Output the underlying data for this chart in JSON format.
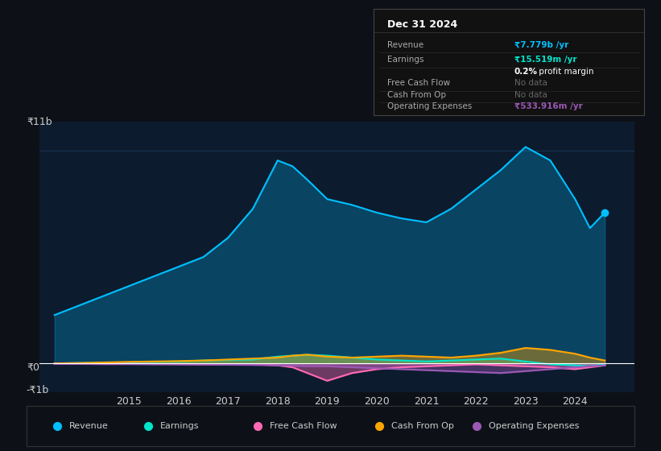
{
  "background_color": "#0d1117",
  "plot_bg_color": "#0d1b2e",
  "grid_color": "#1e3a5f",
  "zero_line_color": "#ffffff",
  "text_color": "#cccccc",
  "title_label": "₹11b",
  "y0_label": "₹0",
  "yn1b_label": "-₹1b",
  "x_ticks": [
    2015,
    2016,
    2017,
    2018,
    2019,
    2020,
    2021,
    2022,
    2023,
    2024
  ],
  "years": [
    2013.5,
    2014.0,
    2014.5,
    2015.0,
    2015.5,
    2016.0,
    2016.5,
    2017.0,
    2017.5,
    2018.0,
    2018.3,
    2018.6,
    2019.0,
    2019.5,
    2020.0,
    2020.5,
    2021.0,
    2021.5,
    2022.0,
    2022.5,
    2023.0,
    2023.5,
    2024.0,
    2024.3,
    2024.6
  ],
  "revenue": [
    2.5,
    3.0,
    3.5,
    4.0,
    4.5,
    5.0,
    5.5,
    6.5,
    8.0,
    10.5,
    10.2,
    9.5,
    8.5,
    8.2,
    7.8,
    7.5,
    7.3,
    8.0,
    9.0,
    10.0,
    11.2,
    10.5,
    8.5,
    7.0,
    7.8
  ],
  "earnings": [
    0.0,
    0.02,
    0.03,
    0.05,
    0.08,
    0.1,
    0.15,
    0.18,
    0.2,
    0.35,
    0.4,
    0.45,
    0.4,
    0.3,
    0.2,
    0.15,
    0.1,
    0.15,
    0.2,
    0.25,
    0.1,
    -0.05,
    -0.1,
    -0.15,
    -0.05
  ],
  "free_cash_flow": [
    0.0,
    0.0,
    0.0,
    -0.02,
    -0.03,
    -0.04,
    -0.05,
    -0.05,
    -0.05,
    -0.1,
    -0.2,
    -0.5,
    -0.9,
    -0.5,
    -0.3,
    -0.2,
    -0.15,
    -0.1,
    -0.05,
    -0.1,
    -0.15,
    -0.2,
    -0.3,
    -0.2,
    -0.1
  ],
  "cash_from_op": [
    0.0,
    0.02,
    0.05,
    0.08,
    0.1,
    0.12,
    0.15,
    0.2,
    0.25,
    0.3,
    0.4,
    0.45,
    0.35,
    0.3,
    0.35,
    0.4,
    0.35,
    0.3,
    0.4,
    0.55,
    0.8,
    0.7,
    0.5,
    0.3,
    0.15
  ],
  "operating_expenses": [
    -0.03,
    -0.03,
    -0.04,
    -0.04,
    -0.05,
    -0.05,
    -0.06,
    -0.07,
    -0.08,
    -0.1,
    -0.12,
    -0.15,
    -0.15,
    -0.2,
    -0.25,
    -0.3,
    -0.35,
    -0.4,
    -0.45,
    -0.5,
    -0.4,
    -0.3,
    -0.2,
    -0.15,
    -0.1
  ],
  "revenue_color": "#00bfff",
  "earnings_color": "#00e5cc",
  "free_cash_flow_color": "#ff69b4",
  "cash_from_op_color": "#ffa500",
  "operating_expenses_color": "#9b59b6",
  "legend_bg": "#0d1117",
  "legend_border": "#333333",
  "tooltip_bg": "#111111",
  "tooltip_border": "#333333",
  "tooltip_title": "Dec 31 2024",
  "tooltip_revenue_color": "#00bfff",
  "tooltip_earnings_color": "#00e5cc",
  "tooltip_op_exp_color": "#9b59b6",
  "ylim_min": -1.5,
  "ylim_max": 12.5,
  "xlim_min": 2013.2,
  "xlim_max": 2025.2
}
